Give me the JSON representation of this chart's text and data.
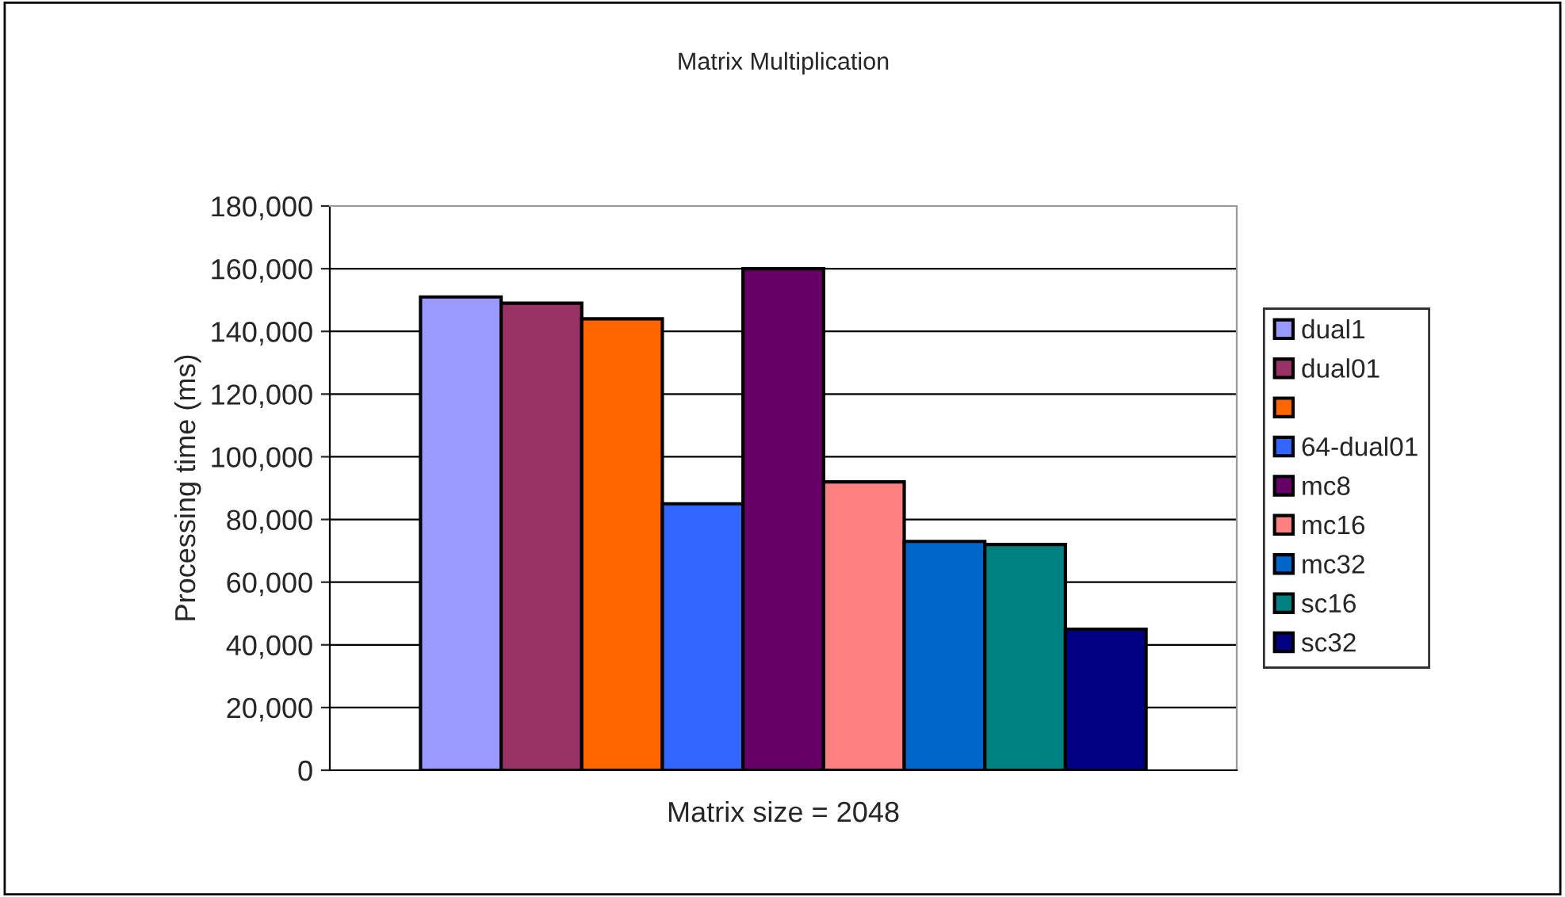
{
  "chart_data": {
    "type": "bar",
    "title": "Matrix Multiplication",
    "ylabel": "Processing time (ms)",
    "categories": [
      "Matrix size = 2048"
    ],
    "series": [
      {
        "name": "dual1",
        "color": "#9999ff",
        "values": [
          151000
        ]
      },
      {
        "name": "dual01",
        "color": "#993366",
        "values": [
          149000
        ]
      },
      {
        "color": "#ff6600",
        "values": [
          144000
        ]
      },
      {
        "name": "64-dual01",
        "color": "#3366ff",
        "values": [
          85000
        ]
      },
      {
        "name": "mc8",
        "color": "#660066",
        "values": [
          160000
        ]
      },
      {
        "name": "mc16",
        "color": "#ff8080",
        "values": [
          92000
        ]
      },
      {
        "name": "mc32",
        "color": "#0066cc",
        "values": [
          73000
        ]
      },
      {
        "name": "sc16",
        "color": "#008080",
        "values": [
          72000
        ]
      },
      {
        "name": "sc32",
        "color": "#000080",
        "values": [
          45000
        ]
      }
    ],
    "ylim": [
      0,
      180000
    ],
    "yticks": [
      {
        "value": 0,
        "label": "0"
      },
      {
        "value": 20000,
        "label": "20,000"
      },
      {
        "value": 40000,
        "label": "40,000"
      },
      {
        "value": 60000,
        "label": "60,000"
      },
      {
        "value": 80000,
        "label": "80,000"
      },
      {
        "value": 100000,
        "label": "100,000"
      },
      {
        "value": 120000,
        "label": "120,000"
      },
      {
        "value": 140000,
        "label": "140,000"
      },
      {
        "value": 160000,
        "label": "160,000"
      },
      {
        "value": 180000,
        "label": "180,000"
      }
    ],
    "grid": "y",
    "legend": "right"
  }
}
